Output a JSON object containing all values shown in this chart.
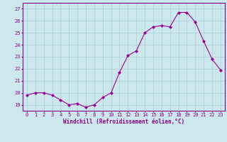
{
  "x": [
    0,
    1,
    2,
    3,
    4,
    5,
    6,
    7,
    8,
    9,
    10,
    11,
    12,
    13,
    14,
    15,
    16,
    17,
    18,
    19,
    20,
    21,
    22,
    23
  ],
  "y": [
    19.8,
    20.0,
    20.0,
    19.8,
    19.4,
    19.0,
    19.1,
    18.8,
    19.0,
    19.6,
    20.0,
    21.7,
    23.1,
    23.5,
    25.0,
    25.5,
    25.6,
    25.5,
    26.7,
    26.7,
    25.9,
    24.3,
    22.8,
    21.9
  ],
  "line_color": "#990099",
  "marker": "D",
  "marker_size": 2.0,
  "bg_color": "#cce8ee",
  "grid_color": "#aacdd5",
  "xlabel": "Windchill (Refroidissement éolien,°C)",
  "ylim": [
    18.5,
    27.5
  ],
  "xlim": [
    -0.5,
    23.5
  ],
  "yticks": [
    19,
    20,
    21,
    22,
    23,
    24,
    25,
    26,
    27
  ],
  "xticks": [
    0,
    1,
    2,
    3,
    4,
    5,
    6,
    7,
    8,
    9,
    10,
    11,
    12,
    13,
    14,
    15,
    16,
    17,
    18,
    19,
    20,
    21,
    22,
    23
  ],
  "tick_color": "#880088",
  "label_color": "#880088",
  "spine_color": "#880088",
  "tick_fontsize": 5.0,
  "xlabel_fontsize": 5.5,
  "linewidth": 0.8
}
